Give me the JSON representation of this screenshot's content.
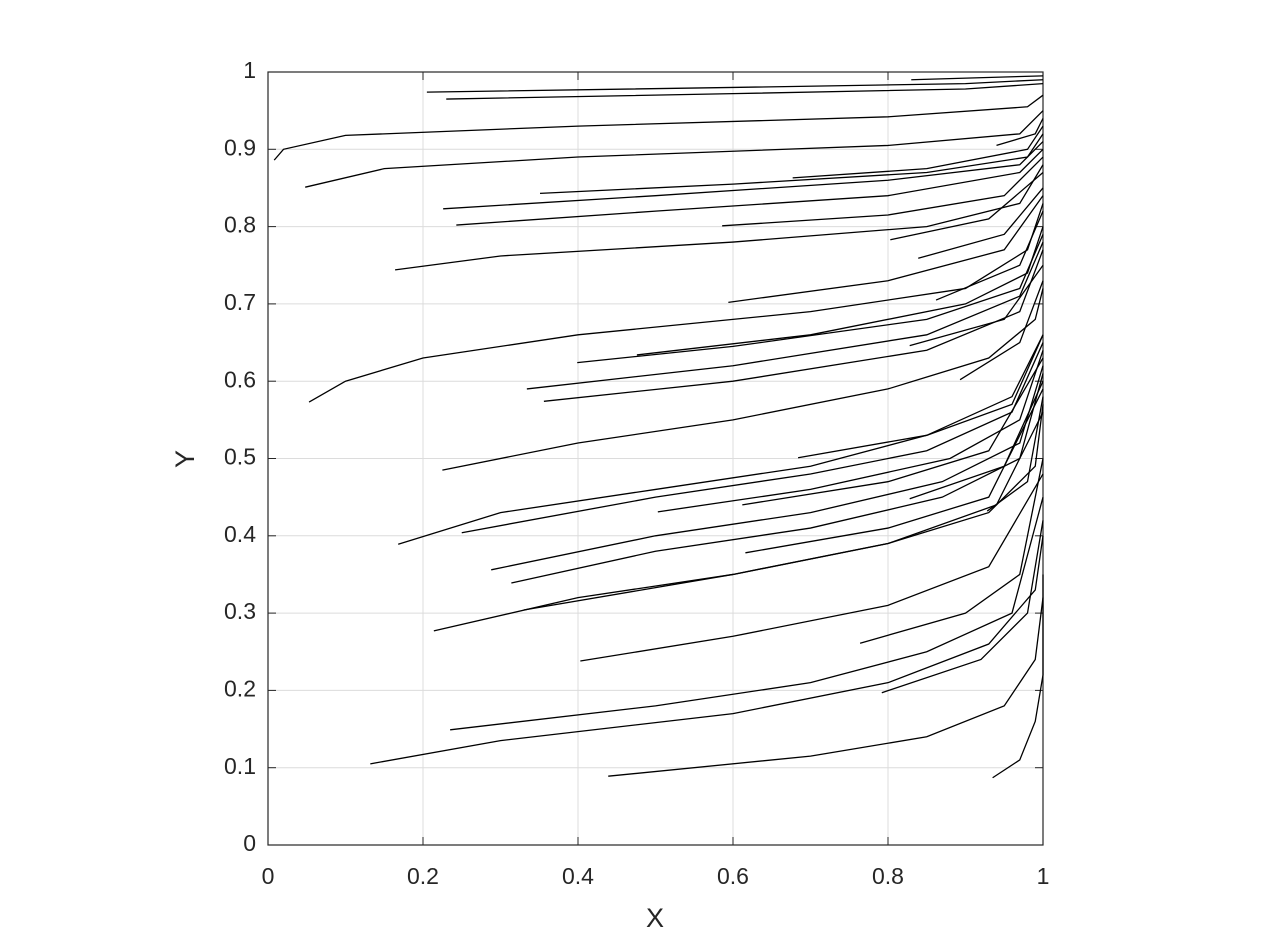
{
  "chart_data": {
    "type": "line",
    "xlabel": "X",
    "ylabel": "Y",
    "color": "#000000",
    "grid": true,
    "xlim": [
      0,
      1
    ],
    "ylim": [
      0,
      1
    ],
    "xticks": [
      0,
      0.2,
      0.4,
      0.6,
      0.8,
      1
    ],
    "yticks": [
      0,
      0.1,
      0.2,
      0.3,
      0.4,
      0.5,
      0.6,
      0.7,
      0.8,
      0.9,
      1
    ],
    "series": [
      {
        "x": [
          0.205,
          0.6,
          0.9,
          1
        ],
        "values": [
          0.974,
          0.98,
          0.985,
          0.99
        ]
      },
      {
        "x": [
          0.23,
          0.6,
          0.9,
          1
        ],
        "values": [
          0.965,
          0.972,
          0.978,
          0.985
        ]
      },
      {
        "x": [
          0.83,
          1
        ],
        "values": [
          0.99,
          0.995
        ]
      },
      {
        "x": [
          0.008,
          0.02,
          0.1,
          0.4,
          0.8,
          0.98,
          1
        ],
        "values": [
          0.886,
          0.9,
          0.918,
          0.93,
          0.942,
          0.955,
          0.97
        ]
      },
      {
        "x": [
          0.048,
          0.15,
          0.4,
          0.8,
          0.97,
          1
        ],
        "values": [
          0.851,
          0.875,
          0.89,
          0.905,
          0.92,
          0.95
        ]
      },
      {
        "x": [
          0.94,
          0.99,
          1
        ],
        "values": [
          0.905,
          0.92,
          0.94
        ]
      },
      {
        "x": [
          0.351,
          0.6,
          0.85,
          0.98,
          1
        ],
        "values": [
          0.843,
          0.855,
          0.87,
          0.89,
          0.92
        ]
      },
      {
        "x": [
          0.677,
          0.85,
          0.98,
          1
        ],
        "values": [
          0.863,
          0.875,
          0.9,
          0.93
        ]
      },
      {
        "x": [
          0.226,
          0.5,
          0.8,
          0.97,
          1
        ],
        "values": [
          0.823,
          0.84,
          0.86,
          0.88,
          0.91
        ]
      },
      {
        "x": [
          0.243,
          0.5,
          0.8,
          0.97,
          1
        ],
        "values": [
          0.802,
          0.82,
          0.84,
          0.87,
          0.9
        ]
      },
      {
        "x": [
          0.586,
          0.8,
          0.95,
          1
        ],
        "values": [
          0.801,
          0.815,
          0.84,
          0.89
        ]
      },
      {
        "x": [
          0.164,
          0.3,
          0.6,
          0.85,
          0.97,
          1
        ],
        "values": [
          0.744,
          0.762,
          0.78,
          0.8,
          0.83,
          0.88
        ]
      },
      {
        "x": [
          0.803,
          0.93,
          1
        ],
        "values": [
          0.783,
          0.81,
          0.87
        ]
      },
      {
        "x": [
          0.839,
          0.95,
          1
        ],
        "values": [
          0.759,
          0.79,
          0.85
        ]
      },
      {
        "x": [
          0.594,
          0.8,
          0.95,
          1
        ],
        "values": [
          0.702,
          0.73,
          0.77,
          0.84
        ]
      },
      {
        "x": [
          0.862,
          0.97,
          1
        ],
        "values": [
          0.705,
          0.75,
          0.82
        ]
      },
      {
        "x": [
          0.053,
          0.1,
          0.2,
          0.4,
          0.7,
          0.9,
          0.98,
          1
        ],
        "values": [
          0.573,
          0.6,
          0.63,
          0.66,
          0.69,
          0.72,
          0.77,
          0.83
        ]
      },
      {
        "x": [
          0.476,
          0.7,
          0.9,
          0.98,
          1
        ],
        "values": [
          0.634,
          0.66,
          0.7,
          0.74,
          0.8
        ]
      },
      {
        "x": [
          0.399,
          0.6,
          0.85,
          0.97,
          1
        ],
        "values": [
          0.624,
          0.645,
          0.68,
          0.72,
          0.79
        ]
      },
      {
        "x": [
          0.334,
          0.6,
          0.85,
          0.97,
          1
        ],
        "values": [
          0.59,
          0.62,
          0.66,
          0.71,
          0.78
        ]
      },
      {
        "x": [
          0.356,
          0.6,
          0.85,
          0.97,
          1
        ],
        "values": [
          0.574,
          0.6,
          0.64,
          0.69,
          0.77
        ]
      },
      {
        "x": [
          0.828,
          0.95,
          1
        ],
        "values": [
          0.646,
          0.68,
          0.75
        ]
      },
      {
        "x": [
          0.893,
          0.97,
          1
        ],
        "values": [
          0.602,
          0.65,
          0.73
        ]
      },
      {
        "x": [
          0.225,
          0.4,
          0.6,
          0.8,
          0.93,
          0.99,
          1
        ],
        "values": [
          0.485,
          0.52,
          0.55,
          0.59,
          0.63,
          0.68,
          0.72
        ]
      },
      {
        "x": [
          0.684,
          0.85,
          0.96,
          1
        ],
        "values": [
          0.501,
          0.53,
          0.57,
          0.66
        ]
      },
      {
        "x": [
          0.168,
          0.3,
          0.5,
          0.7,
          0.85,
          0.96,
          1
        ],
        "values": [
          0.389,
          0.43,
          0.46,
          0.49,
          0.53,
          0.58,
          0.66
        ]
      },
      {
        "x": [
          0.25,
          0.5,
          0.7,
          0.85,
          0.96,
          1
        ],
        "values": [
          0.404,
          0.45,
          0.48,
          0.51,
          0.56,
          0.65
        ]
      },
      {
        "x": [
          0.503,
          0.7,
          0.88,
          0.97,
          1
        ],
        "values": [
          0.431,
          0.46,
          0.5,
          0.55,
          0.64
        ]
      },
      {
        "x": [
          0.612,
          0.8,
          0.93,
          1
        ],
        "values": [
          0.44,
          0.47,
          0.51,
          0.63
        ]
      },
      {
        "x": [
          0.288,
          0.5,
          0.7,
          0.87,
          0.97,
          1
        ],
        "values": [
          0.356,
          0.4,
          0.43,
          0.47,
          0.52,
          0.62
        ]
      },
      {
        "x": [
          0.314,
          0.5,
          0.7,
          0.87,
          0.97,
          1
        ],
        "values": [
          0.339,
          0.38,
          0.41,
          0.45,
          0.5,
          0.61
        ]
      },
      {
        "x": [
          0.828,
          0.95,
          1
        ],
        "values": [
          0.448,
          0.49,
          0.6
        ]
      },
      {
        "x": [
          0.616,
          0.8,
          0.93,
          1
        ],
        "values": [
          0.378,
          0.41,
          0.45,
          0.59
        ]
      },
      {
        "x": [
          0.928,
          0.98,
          1
        ],
        "values": [
          0.432,
          0.47,
          0.58
        ]
      },
      {
        "x": [
          0.33,
          0.6,
          0.8,
          0.93,
          0.99,
          1
        ],
        "values": [
          0.304,
          0.35,
          0.39,
          0.43,
          0.49,
          0.57
        ]
      },
      {
        "x": [
          0.214,
          0.4,
          0.6,
          0.8,
          0.94,
          1
        ],
        "values": [
          0.277,
          0.32,
          0.35,
          0.39,
          0.44,
          0.56
        ]
      },
      {
        "x": [
          0.764,
          0.9,
          0.97,
          1
        ],
        "values": [
          0.261,
          0.3,
          0.35,
          0.5
        ]
      },
      {
        "x": [
          0.403,
          0.6,
          0.8,
          0.93,
          1
        ],
        "values": [
          0.238,
          0.27,
          0.31,
          0.36,
          0.48
        ]
      },
      {
        "x": [
          0.235,
          0.5,
          0.7,
          0.85,
          0.96,
          1
        ],
        "values": [
          0.149,
          0.18,
          0.21,
          0.25,
          0.3,
          0.45
        ]
      },
      {
        "x": [
          0.792,
          0.92,
          0.98,
          1
        ],
        "values": [
          0.197,
          0.24,
          0.3,
          0.42
        ]
      },
      {
        "x": [
          0.132,
          0.3,
          0.6,
          0.8,
          0.93,
          0.99,
          1
        ],
        "values": [
          0.105,
          0.135,
          0.17,
          0.21,
          0.26,
          0.33,
          0.4
        ]
      },
      {
        "x": [
          0.439,
          0.7,
          0.85,
          0.95,
          0.99,
          1
        ],
        "values": [
          0.089,
          0.115,
          0.14,
          0.18,
          0.24,
          0.32
        ]
      },
      {
        "x": [
          0.935,
          0.97,
          0.99,
          1,
          1
        ],
        "values": [
          0.087,
          0.11,
          0.16,
          0.22,
          0.35
        ]
      }
    ]
  }
}
